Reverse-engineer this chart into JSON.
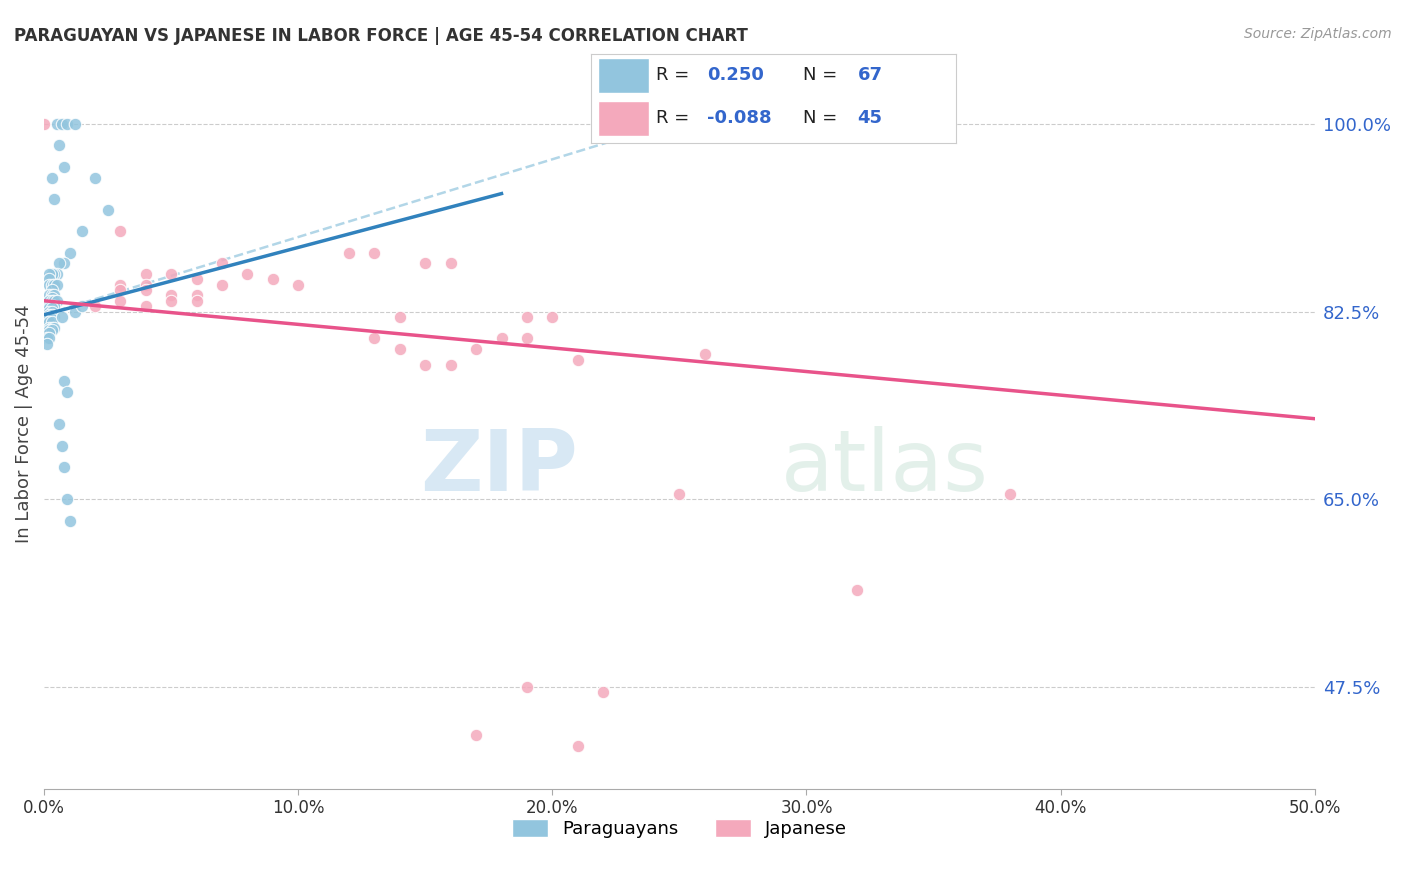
{
  "title": "PARAGUAYAN VS JAPANESE IN LABOR FORCE | AGE 45-54 CORRELATION CHART",
  "source": "Source: ZipAtlas.com",
  "ylabel": "In Labor Force | Age 45-54",
  "y_ticks": [
    0.475,
    0.65,
    0.825,
    1.0
  ],
  "y_tick_labels": [
    "47.5%",
    "65.0%",
    "82.5%",
    "100.0%"
  ],
  "x_ticks": [
    0.0,
    0.1,
    0.2,
    0.3,
    0.4,
    0.5
  ],
  "x_tick_labels": [
    "0.0%",
    "10.0%",
    "20.0%",
    "30.0%",
    "40.0%",
    "50.0%"
  ],
  "x_range": [
    0.0,
    0.5
  ],
  "y_range": [
    0.38,
    1.06
  ],
  "blue_color": "#92c5de",
  "pink_color": "#f4a9bc",
  "blue_line_color": "#3182bd",
  "pink_line_color": "#e8538a",
  "blue_scatter": [
    [
      0.005,
      1.0
    ],
    [
      0.007,
      1.0
    ],
    [
      0.009,
      1.0
    ],
    [
      0.012,
      1.0
    ],
    [
      0.006,
      0.98
    ],
    [
      0.008,
      0.96
    ],
    [
      0.02,
      0.95
    ],
    [
      0.003,
      0.95
    ],
    [
      0.004,
      0.93
    ],
    [
      0.025,
      0.92
    ],
    [
      0.015,
      0.9
    ],
    [
      0.01,
      0.88
    ],
    [
      0.008,
      0.87
    ],
    [
      0.006,
      0.87
    ],
    [
      0.005,
      0.86
    ],
    [
      0.004,
      0.86
    ],
    [
      0.003,
      0.86
    ],
    [
      0.002,
      0.86
    ],
    [
      0.002,
      0.855
    ],
    [
      0.002,
      0.85
    ],
    [
      0.003,
      0.85
    ],
    [
      0.004,
      0.85
    ],
    [
      0.005,
      0.85
    ],
    [
      0.003,
      0.845
    ],
    [
      0.002,
      0.84
    ],
    [
      0.003,
      0.84
    ],
    [
      0.004,
      0.84
    ],
    [
      0.003,
      0.838
    ],
    [
      0.002,
      0.835
    ],
    [
      0.003,
      0.835
    ],
    [
      0.004,
      0.835
    ],
    [
      0.005,
      0.835
    ],
    [
      0.002,
      0.83
    ],
    [
      0.003,
      0.83
    ],
    [
      0.004,
      0.83
    ],
    [
      0.002,
      0.828
    ],
    [
      0.003,
      0.828
    ],
    [
      0.002,
      0.825
    ],
    [
      0.003,
      0.825
    ],
    [
      0.002,
      0.822
    ],
    [
      0.003,
      0.822
    ],
    [
      0.002,
      0.82
    ],
    [
      0.003,
      0.82
    ],
    [
      0.004,
      0.82
    ],
    [
      0.002,
      0.818
    ],
    [
      0.003,
      0.818
    ],
    [
      0.002,
      0.815
    ],
    [
      0.003,
      0.815
    ],
    [
      0.002,
      0.81
    ],
    [
      0.003,
      0.81
    ],
    [
      0.004,
      0.81
    ],
    [
      0.002,
      0.808
    ],
    [
      0.003,
      0.808
    ],
    [
      0.002,
      0.805
    ],
    [
      0.001,
      0.8
    ],
    [
      0.002,
      0.8
    ],
    [
      0.001,
      0.795
    ],
    [
      0.007,
      0.82
    ],
    [
      0.012,
      0.825
    ],
    [
      0.015,
      0.83
    ],
    [
      0.008,
      0.76
    ],
    [
      0.009,
      0.75
    ],
    [
      0.006,
      0.72
    ],
    [
      0.007,
      0.7
    ],
    [
      0.008,
      0.68
    ],
    [
      0.009,
      0.65
    ],
    [
      0.01,
      0.63
    ]
  ],
  "pink_scatter": [
    [
      0.0,
      1.0
    ],
    [
      0.35,
      1.0
    ],
    [
      0.03,
      0.9
    ],
    [
      0.13,
      0.88
    ],
    [
      0.12,
      0.88
    ],
    [
      0.07,
      0.87
    ],
    [
      0.15,
      0.87
    ],
    [
      0.16,
      0.87
    ],
    [
      0.04,
      0.86
    ],
    [
      0.05,
      0.86
    ],
    [
      0.08,
      0.86
    ],
    [
      0.06,
      0.855
    ],
    [
      0.09,
      0.855
    ],
    [
      0.03,
      0.85
    ],
    [
      0.04,
      0.85
    ],
    [
      0.07,
      0.85
    ],
    [
      0.1,
      0.85
    ],
    [
      0.03,
      0.845
    ],
    [
      0.04,
      0.845
    ],
    [
      0.05,
      0.84
    ],
    [
      0.06,
      0.84
    ],
    [
      0.03,
      0.835
    ],
    [
      0.05,
      0.835
    ],
    [
      0.06,
      0.835
    ],
    [
      0.02,
      0.83
    ],
    [
      0.04,
      0.83
    ],
    [
      0.19,
      0.82
    ],
    [
      0.2,
      0.82
    ],
    [
      0.14,
      0.82
    ],
    [
      0.13,
      0.8
    ],
    [
      0.18,
      0.8
    ],
    [
      0.19,
      0.8
    ],
    [
      0.14,
      0.79
    ],
    [
      0.17,
      0.79
    ],
    [
      0.26,
      0.785
    ],
    [
      0.21,
      0.78
    ],
    [
      0.15,
      0.775
    ],
    [
      0.16,
      0.775
    ],
    [
      0.25,
      0.655
    ],
    [
      0.38,
      0.655
    ],
    [
      0.32,
      0.565
    ],
    [
      0.19,
      0.475
    ],
    [
      0.22,
      0.47
    ],
    [
      0.17,
      0.43
    ],
    [
      0.21,
      0.42
    ]
  ],
  "blue_trend": [
    0.0,
    0.822,
    0.18,
    0.935
  ],
  "blue_ref_line": [
    0.0,
    0.822,
    0.28,
    1.025
  ],
  "pink_trend": [
    0.0,
    0.835,
    0.5,
    0.725
  ],
  "watermark_zip": "ZIP",
  "watermark_atlas": "atlas",
  "background_color": "#ffffff",
  "grid_color": "#cccccc"
}
